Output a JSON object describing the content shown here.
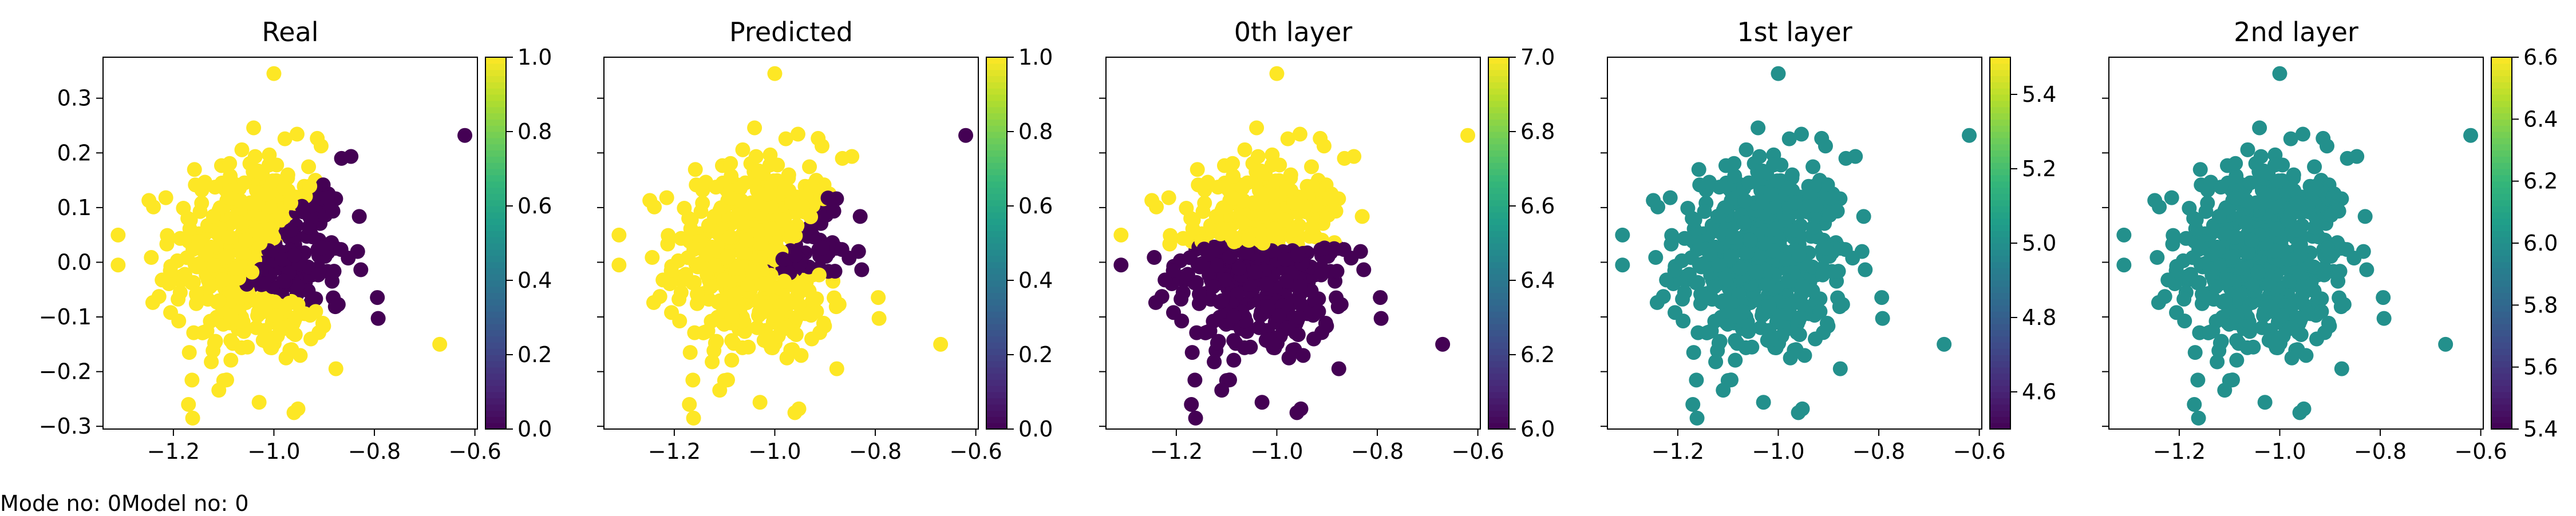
{
  "footer": {
    "mode_label": "Mode no: 0",
    "model_label": "Model no: 0"
  },
  "colormap": "viridis",
  "chart_data": [
    {
      "type": "scatter",
      "title": "Real",
      "colorbar": {
        "min": 0.0,
        "max": 1.0,
        "ticks": [
          "0.0",
          "0.2",
          "0.4",
          "0.6",
          "0.8",
          "1.0"
        ]
      },
      "xlim": [
        -1.34,
        -0.595
      ],
      "ylim": [
        -0.305,
        0.375
      ],
      "xticks": [
        "−1.2",
        "−1.0",
        "−0.8",
        "−0.6"
      ],
      "yticks": [
        "−0.3",
        "−0.2",
        "−0.1",
        "0.0",
        "0.1",
        "0.2",
        "0.3"
      ],
      "coloring": "yellow left of a curved boundary, purple upper-right"
    },
    {
      "type": "scatter",
      "title": "Predicted",
      "colorbar": {
        "min": 0.0,
        "max": 1.0,
        "ticks": [
          "0.0",
          "0.2",
          "0.4",
          "0.6",
          "0.8",
          "1.0"
        ]
      },
      "xlim": [
        -1.34,
        -0.595
      ],
      "ylim": [
        -0.305,
        0.375
      ],
      "xticks": [
        "−1.2",
        "−1.0",
        "−0.8",
        "−0.6"
      ],
      "yticks": [],
      "coloring": "yellow lower-left, purple upper-right wedge"
    },
    {
      "type": "scatter",
      "title": "0th layer",
      "colorbar": {
        "min": 6.0,
        "max": 7.0,
        "ticks": [
          "6.0",
          "6.2",
          "6.4",
          "6.6",
          "6.8",
          "7.0"
        ]
      },
      "xlim": [
        -1.34,
        -0.595
      ],
      "ylim": [
        -0.305,
        0.375
      ],
      "xticks": [
        "−1.2",
        "−1.0",
        "−0.8",
        "−0.6"
      ],
      "yticks": [],
      "coloring": "yellow (7.0) above y=0.03, purple (6.0) below"
    },
    {
      "type": "scatter",
      "title": "1st layer",
      "colorbar": {
        "min": 4.5,
        "max": 5.5,
        "ticks": [
          "4.6",
          "4.8",
          "5.0",
          "5.2",
          "5.4"
        ]
      },
      "xlim": [
        -1.34,
        -0.595
      ],
      "ylim": [
        -0.305,
        0.375
      ],
      "xticks": [
        "−1.2",
        "−1.0",
        "−0.8",
        "−0.6"
      ],
      "yticks": [],
      "uniform_value": 5.0
    },
    {
      "type": "scatter",
      "title": "2nd layer",
      "colorbar": {
        "min": 5.4,
        "max": 6.6,
        "ticks": [
          "5.4",
          "5.6",
          "5.8",
          "6.0",
          "6.2",
          "6.4",
          "6.6"
        ]
      },
      "xlim": [
        -1.34,
        -0.595
      ],
      "ylim": [
        -0.305,
        0.375
      ],
      "xticks": [
        "−1.2",
        "−1.0",
        "−0.8",
        "−0.6"
      ],
      "yticks": [],
      "uniform_value": 6.0
    }
  ]
}
